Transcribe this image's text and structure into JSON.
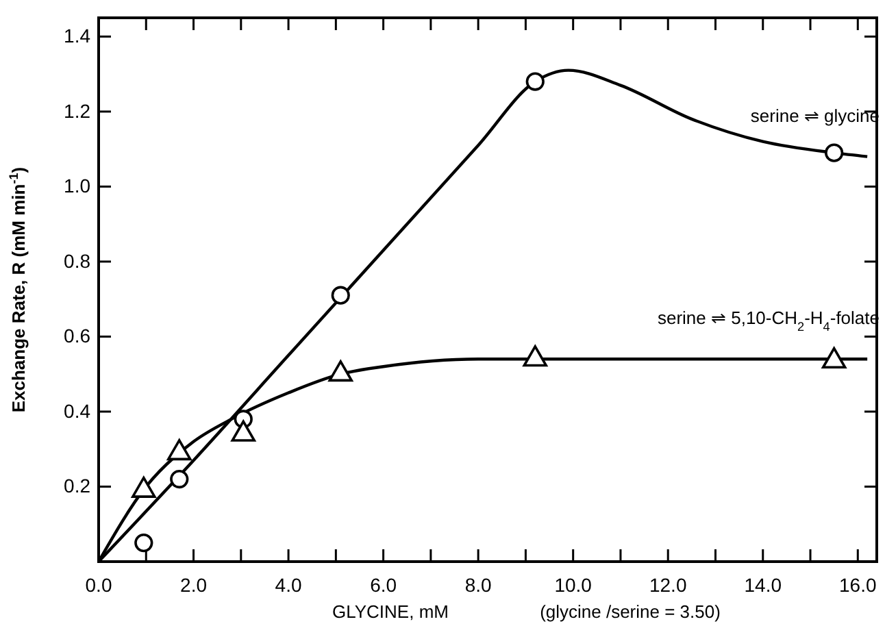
{
  "chart_data": {
    "type": "scatter",
    "xlabel": "GLYCINE, mM",
    "ylabel": "Exchange Rate, R (mM min$^{-1}$)",
    "xlim": [
      0,
      16.4
    ],
    "ylim": [
      0,
      1.45
    ],
    "xticks": [
      {
        "value": 0,
        "label": "0.0"
      },
      {
        "value": 1,
        "label": null
      },
      {
        "value": 2,
        "label": "2.0"
      },
      {
        "value": 3,
        "label": null
      },
      {
        "value": 4,
        "label": "4.0"
      },
      {
        "value": 5,
        "label": null
      },
      {
        "value": 6,
        "label": "6.0"
      },
      {
        "value": 7,
        "label": null
      },
      {
        "value": 8,
        "label": "8.0"
      },
      {
        "value": 9,
        "label": null
      },
      {
        "value": 10,
        "label": "10.0"
      },
      {
        "value": 11,
        "label": null
      },
      {
        "value": 12,
        "label": "12.0"
      },
      {
        "value": 13,
        "label": null
      },
      {
        "value": 14,
        "label": "14.0"
      },
      {
        "value": 15,
        "label": null
      },
      {
        "value": 16,
        "label": "16.0"
      }
    ],
    "yticks": [
      0.2,
      0.4,
      0.6,
      0.8,
      {
        "value": 1.0,
        "label": "1.0"
      },
      1.2,
      1.4
    ],
    "grid": false,
    "series": [
      {
        "marker": "circle",
        "color": "#000000",
        "x": [
          0.95,
          1.7,
          3.05,
          5.1,
          9.2,
          15.5
        ],
        "values": [
          0.05,
          0.22,
          0.38,
          0.71,
          1.28,
          1.09
        ]
      },
      {
        "marker": "triangle",
        "color": "#000000",
        "x": [
          0.95,
          1.7,
          3.05,
          5.1,
          9.2,
          15.5
        ],
        "values": [
          0.19,
          0.29,
          0.34,
          0.5,
          0.54,
          0.535
        ]
      },
      {
        "type": "line",
        "name": "serine ⇌ glycine",
        "marker": "none",
        "line_style": "solid",
        "color": "#000000",
        "x": [
          0,
          2,
          4,
          6,
          8,
          9.2,
          9.9,
          11,
          12.5,
          14,
          15.5,
          16.2
        ],
        "values": [
          0,
          0.27,
          0.55,
          0.83,
          1.11,
          1.28,
          1.31,
          1.27,
          1.18,
          1.12,
          1.09,
          1.08
        ]
      },
      {
        "type": "line",
        "name": "serine ⇌ 5,10-CH$_{2}$-H$_{4}$-folate",
        "marker": "none",
        "line_style": "solid",
        "color": "#000000",
        "x": [
          0,
          1,
          2,
          2.8,
          4,
          5.1,
          6,
          8,
          9.2,
          12,
          16.2
        ],
        "values": [
          0,
          0.2,
          0.32,
          0.38,
          0.45,
          0.5,
          0.52,
          0.54,
          0.54,
          0.54,
          0.54
        ]
      }
    ],
    "annotations": [
      "(glycine /serine = 3.50)"
    ]
  }
}
